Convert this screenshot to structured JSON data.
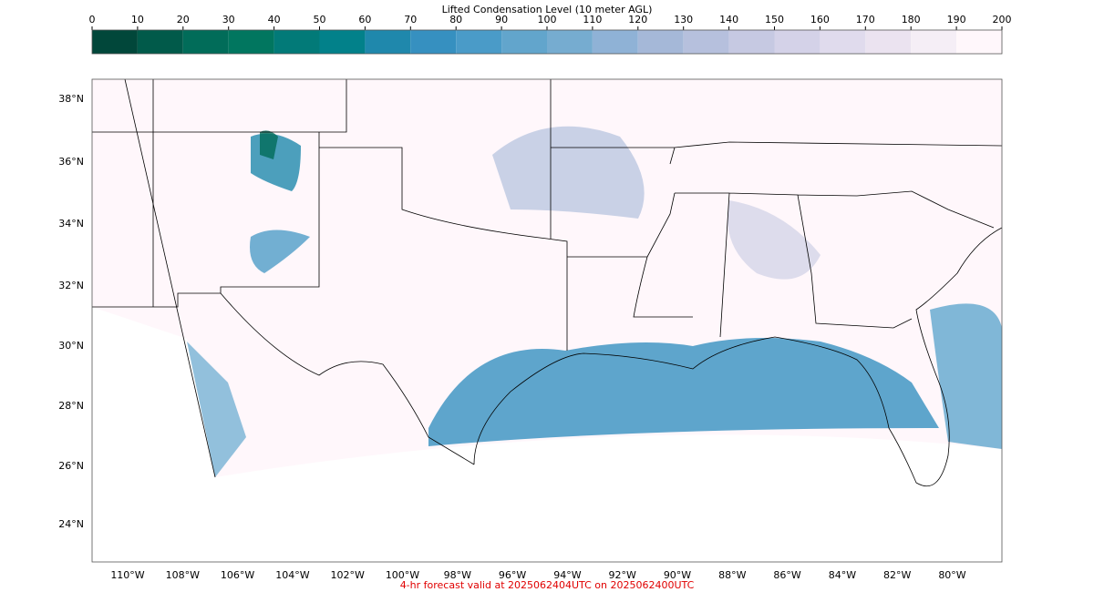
{
  "colorbar": {
    "title": "Lifted Condensation Level (10 meter AGL)",
    "ticks": [
      0,
      10,
      20,
      30,
      40,
      50,
      60,
      70,
      80,
      90,
      100,
      110,
      120,
      130,
      140,
      150,
      160,
      170,
      180,
      190,
      200
    ],
    "colors": [
      "#01473a",
      "#015a4a",
      "#016c59",
      "#01765f",
      "#027a78",
      "#02818a",
      "#1f88ac",
      "#3690c0",
      "#4a9bc8",
      "#62a5cc",
      "#76acd0",
      "#8fb2d6",
      "#a5b8d8",
      "#b6c0dd",
      "#c6c9e2",
      "#d4d2e8",
      "#e0dbed",
      "#ebe3f0",
      "#f5eef6",
      "#fff7fb"
    ]
  },
  "map": {
    "lat_labels": [
      "38°N",
      "36°N",
      "34°N",
      "32°N",
      "30°N",
      "28°N",
      "26°N",
      "24°N"
    ],
    "lon_labels": [
      "110°W",
      "108°W",
      "106°W",
      "104°W",
      "102°W",
      "100°W",
      "98°W",
      "96°W",
      "94°W",
      "92°W",
      "90°W",
      "88°W",
      "86°W",
      "84°W",
      "82°W",
      "80°W"
    ]
  },
  "caption": "4-hr forecast valid at 2025062404UTC on 2025062400UTC"
}
